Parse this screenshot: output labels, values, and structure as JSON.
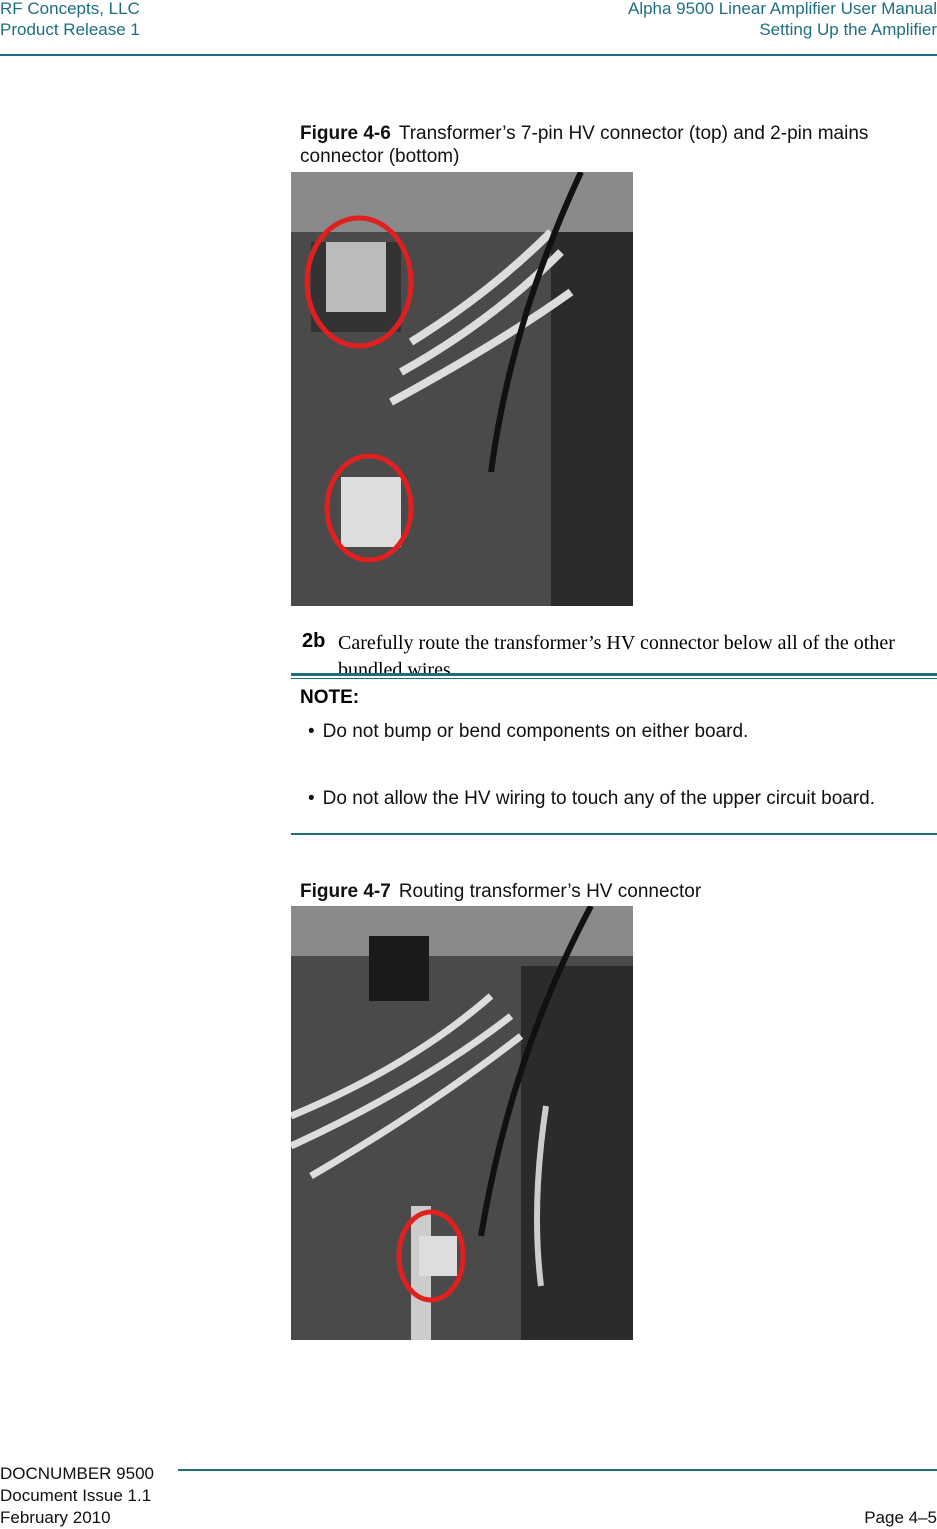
{
  "header": {
    "left": [
      "RF Concepts, LLC",
      "Product Release 1"
    ],
    "right": [
      "Alpha 9500 Linear Amplifier User Manual",
      "Setting Up the Amplifier"
    ]
  },
  "figures": [
    {
      "label": "Figure 4-6",
      "caption": "Transformer’s 7-pin HV connector (top) and 2-pin mains connector (bottom)"
    },
    {
      "label": "Figure 4-7",
      "caption": "Routing transformer’s HV connector"
    }
  ],
  "step": {
    "number": "2b",
    "text": "Carefully route the transformer’s HV connector below all of the other bundled wires."
  },
  "note": {
    "title": "NOTE:",
    "items": [
      "Do not bump or bend components on either board.",
      "Do not allow the HV wiring to touch any of the upper circuit board."
    ]
  },
  "footer": {
    "left": [
      "DOCNUMBER 9500",
      "Document Issue 1.1",
      "February 2010"
    ],
    "right": "Page 4–5"
  }
}
